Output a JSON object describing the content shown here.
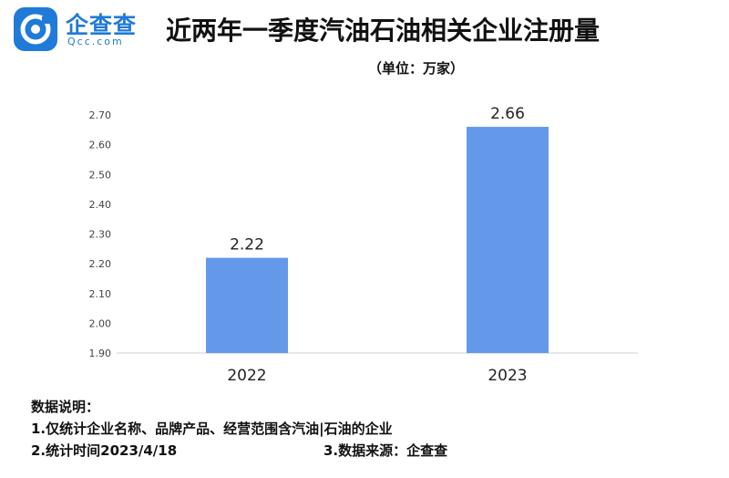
{
  "brand": {
    "logo_text": "企查查",
    "logo_domain": "Qcc.com",
    "accent": "#1f7ad8"
  },
  "header": {
    "title": "近两年一季度汽油石油相关企业注册量",
    "subtitle": "（单位：万家）"
  },
  "chart_data": {
    "type": "bar",
    "categories": [
      "2022",
      "2023"
    ],
    "values": [
      2.22,
      2.66
    ],
    "value_labels": [
      "2.22",
      "2.66"
    ],
    "ylim": [
      1.9,
      2.7
    ],
    "yticks": [
      "1.90",
      "2.00",
      "2.10",
      "2.20",
      "2.30",
      "2.40",
      "2.50",
      "2.60",
      "2.70"
    ],
    "grid": false,
    "bar_color": "#6499e9"
  },
  "notes": {
    "heading": "数据说明：",
    "line1": "1.仅统计企业名称、品牌产品、经营范围含汽油|石油的企业",
    "line2": "2.统计时间2023/4/18",
    "line3": "3.数据来源：企查查"
  }
}
